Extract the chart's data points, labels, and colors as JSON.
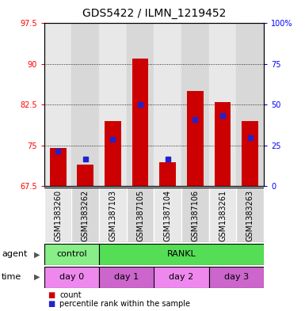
{
  "title": "GDS5422 / ILMN_1219452",
  "samples": [
    "GSM1383260",
    "GSM1383262",
    "GSM1387103",
    "GSM1387105",
    "GSM1387104",
    "GSM1387106",
    "GSM1383261",
    "GSM1383263"
  ],
  "bar_heights": [
    74.5,
    71.5,
    79.5,
    91.0,
    72.0,
    85.0,
    83.0,
    79.5
  ],
  "blue_positions": [
    74.0,
    72.5,
    76.2,
    82.5,
    72.5,
    79.8,
    80.5,
    76.5
  ],
  "ylim_left": [
    67.5,
    97.5
  ],
  "yticks_left": [
    67.5,
    75.0,
    82.5,
    90.0,
    97.5
  ],
  "yticks_right_labels": [
    "0",
    "25",
    "50",
    "75",
    "100%"
  ],
  "yticks_right_vals": [
    67.5,
    75.0,
    82.5,
    90.0,
    97.5
  ],
  "bar_color": "#cc0000",
  "blue_color": "#2222cc",
  "agent_data": [
    {
      "text": "control",
      "span": [
        0,
        2
      ],
      "color": "#88ee88"
    },
    {
      "text": "RANKL",
      "span": [
        2,
        8
      ],
      "color": "#55dd55"
    }
  ],
  "time_data": [
    {
      "text": "day 0",
      "span": [
        0,
        2
      ],
      "color": "#ee88ee"
    },
    {
      "text": "day 1",
      "span": [
        2,
        4
      ],
      "color": "#cc66cc"
    },
    {
      "text": "day 2",
      "span": [
        4,
        6
      ],
      "color": "#ee88ee"
    },
    {
      "text": "day 3",
      "span": [
        6,
        8
      ],
      "color": "#cc66cc"
    }
  ],
  "col_bg_even": "#e8e8e8",
  "col_bg_odd": "#d8d8d8",
  "grid_lines": [
    75.0,
    82.5,
    90.0
  ],
  "title_fontsize": 10,
  "label_fontsize": 7,
  "annot_fontsize": 8,
  "side_label_fontsize": 8
}
